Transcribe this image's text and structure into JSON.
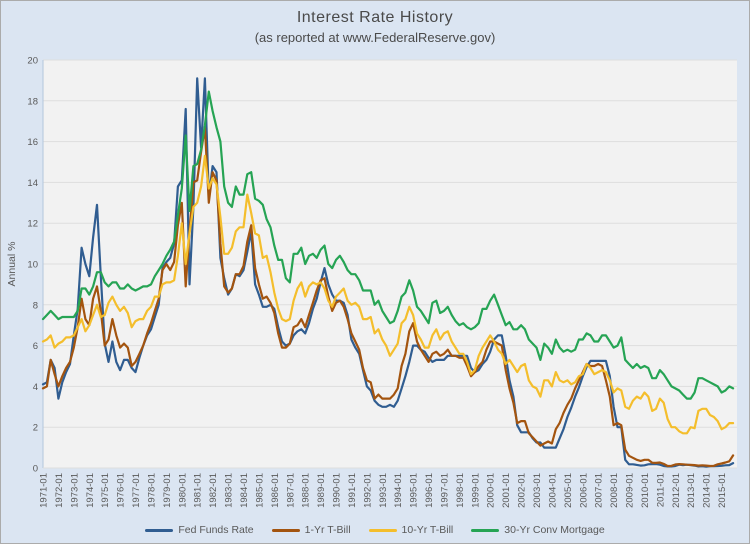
{
  "header": {
    "title": "Interest Rate History",
    "subtitle": "(as reported at www.FederalReserve.gov)"
  },
  "chart_data": {
    "type": "line",
    "title": "Interest Rate History",
    "subtitle": "(as reported at www.FederalReserve.gov)",
    "ylabel": "Annual %",
    "ylim": [
      0,
      20
    ],
    "yticks": [
      0,
      2,
      4,
      6,
      8,
      10,
      12,
      14,
      16,
      18,
      20
    ],
    "x_domain": [
      1971,
      2016
    ],
    "x_start": 1971.0,
    "x_step": 0.25,
    "grid": true,
    "legend_position": "bottom",
    "page_bg": "#dbe5f2",
    "plot_bg": "#f2f2f2",
    "gridline_color": "#dedede",
    "axis_line_color": "#b3c6dc",
    "tick_color": "#595959",
    "x_tick_labels": [
      "1971-01",
      "1972-01",
      "1973-01",
      "1974-01",
      "1975-01",
      "1976-01",
      "1977-01",
      "1978-01",
      "1979-01",
      "1980-01",
      "1981-01",
      "1982-01",
      "1983-01",
      "1984-01",
      "1985-01",
      "1986-01",
      "1987-01",
      "1988-01",
      "1989-01",
      "1990-01",
      "1991-01",
      "1992-01",
      "1993-01",
      "1994-01",
      "1995-01",
      "1996-01",
      "1997-01",
      "1998-01",
      "1999-01",
      "2000-01",
      "2001-01",
      "2002-01",
      "2003-01",
      "2004-01",
      "2005-01",
      "2006-01",
      "2007-01",
      "2008-01",
      "2009-01",
      "2010-01",
      "2011-01",
      "2012-01",
      "2013-01",
      "2014-01",
      "2015-01"
    ],
    "series": [
      {
        "name": "Fed Funds Rate",
        "color": "#305D91",
        "values": [
          4.1,
          4.2,
          5.3,
          4.9,
          3.4,
          4.2,
          4.7,
          5.1,
          6.5,
          7.8,
          10.8,
          10.0,
          9.4,
          11.3,
          12.9,
          9.4,
          6.1,
          5.2,
          6.2,
          5.2,
          4.8,
          5.3,
          5.3,
          4.9,
          4.7,
          5.4,
          6.0,
          6.5,
          6.8,
          7.4,
          8.0,
          9.8,
          10.1,
          10.3,
          11.0,
          13.8,
          14.1,
          17.6,
          9.0,
          12.8,
          19.1,
          15.7,
          19.1,
          13.3,
          14.8,
          14.5,
          10.3,
          9.3,
          8.5,
          8.8,
          9.5,
          9.4,
          9.7,
          10.6,
          11.6,
          9.0,
          8.5,
          7.9,
          7.9,
          8.0,
          7.8,
          6.9,
          6.2,
          6.0,
          6.1,
          6.5,
          6.7,
          6.8,
          6.6,
          7.1,
          7.8,
          8.3,
          9.1,
          9.8,
          9.0,
          8.5,
          8.2,
          8.2,
          8.1,
          7.5,
          6.3,
          5.9,
          5.6,
          4.8,
          4.0,
          3.8,
          3.3,
          3.1,
          3.0,
          3.0,
          3.1,
          3.0,
          3.3,
          3.9,
          4.5,
          5.2,
          6.0,
          6.0,
          5.8,
          5.7,
          5.4,
          5.2,
          5.3,
          5.3,
          5.3,
          5.5,
          5.5,
          5.5,
          5.5,
          5.5,
          5.5,
          4.9,
          4.7,
          4.8,
          5.1,
          5.3,
          5.7,
          6.3,
          6.5,
          6.5,
          5.5,
          4.3,
          3.5,
          2.1,
          1.75,
          1.75,
          1.75,
          1.45,
          1.25,
          1.25,
          1.0,
          1.0,
          1.0,
          1.0,
          1.45,
          1.9,
          2.5,
          2.95,
          3.5,
          3.95,
          4.5,
          4.95,
          5.25,
          5.25,
          5.25,
          5.25,
          5.25,
          4.5,
          3.0,
          2.0,
          2.0,
          0.4,
          0.18,
          0.18,
          0.15,
          0.12,
          0.13,
          0.18,
          0.19,
          0.19,
          0.16,
          0.1,
          0.08,
          0.08,
          0.1,
          0.16,
          0.14,
          0.16,
          0.14,
          0.12,
          0.08,
          0.09,
          0.07,
          0.09,
          0.09,
          0.1,
          0.11,
          0.13,
          0.14,
          0.24
        ]
      },
      {
        "name": "1-Yr T-Bill",
        "color": "#A3540F",
        "values": [
          3.9,
          4.0,
          5.3,
          4.6,
          4.0,
          4.5,
          4.9,
          5.2,
          5.9,
          6.9,
          8.3,
          7.3,
          7.0,
          8.3,
          8.9,
          7.7,
          6.0,
          6.3,
          7.3,
          6.5,
          5.9,
          6.1,
          5.9,
          5.0,
          5.2,
          5.6,
          6.0,
          6.6,
          7.1,
          7.7,
          8.3,
          9.7,
          10.0,
          9.7,
          10.1,
          11.9,
          13.0,
          8.9,
          11.6,
          14.0,
          14.1,
          15.5,
          16.7,
          13.0,
          14.5,
          14.1,
          11.0,
          8.9,
          8.6,
          8.8,
          9.5,
          9.5,
          9.9,
          11.1,
          11.9,
          9.8,
          9.0,
          8.3,
          8.4,
          8.1,
          7.6,
          6.6,
          5.9,
          5.9,
          6.1,
          6.9,
          7.0,
          7.3,
          6.9,
          7.5,
          8.1,
          8.7,
          9.2,
          9.3,
          8.4,
          7.7,
          8.1,
          8.2,
          7.9,
          7.3,
          6.6,
          6.2,
          5.8,
          4.9,
          4.3,
          4.2,
          3.4,
          3.6,
          3.4,
          3.4,
          3.4,
          3.6,
          3.9,
          5.0,
          5.6,
          6.7,
          7.1,
          6.2,
          5.8,
          5.5,
          5.2,
          5.6,
          5.7,
          5.5,
          5.6,
          5.8,
          5.5,
          5.5,
          5.4,
          5.4,
          5.0,
          4.5,
          4.7,
          5.0,
          5.2,
          5.8,
          6.2,
          6.2,
          6.1,
          6.0,
          4.8,
          3.9,
          3.2,
          2.2,
          2.3,
          2.3,
          1.7,
          1.5,
          1.3,
          1.1,
          1.2,
          1.3,
          1.2,
          1.9,
          2.2,
          2.7,
          3.1,
          3.4,
          3.9,
          4.3,
          4.7,
          5.1,
          5.0,
          5.0,
          5.1,
          5.0,
          4.3,
          3.5,
          2.1,
          2.2,
          2.1,
          0.9,
          0.6,
          0.5,
          0.4,
          0.35,
          0.4,
          0.4,
          0.26,
          0.25,
          0.27,
          0.2,
          0.1,
          0.11,
          0.17,
          0.19,
          0.18,
          0.16,
          0.15,
          0.14,
          0.12,
          0.13,
          0.12,
          0.1,
          0.11,
          0.18,
          0.22,
          0.27,
          0.33,
          0.62
        ]
      },
      {
        "name": "10-Yr T-Bill",
        "color": "#F4BE2C",
        "values": [
          6.2,
          6.3,
          6.5,
          5.9,
          6.1,
          6.2,
          6.4,
          6.4,
          6.5,
          6.9,
          7.3,
          6.7,
          7.0,
          7.5,
          8.0,
          7.4,
          7.5,
          8.1,
          8.4,
          8.0,
          7.7,
          7.9,
          7.6,
          6.9,
          7.2,
          7.3,
          7.3,
          7.7,
          7.9,
          8.4,
          8.4,
          9.0,
          9.1,
          9.1,
          9.2,
          10.4,
          12.0,
          10.0,
          11.5,
          12.8,
          13.0,
          13.8,
          15.3,
          13.7,
          14.2,
          13.9,
          12.3,
          10.5,
          10.5,
          10.8,
          11.6,
          11.8,
          11.8,
          13.4,
          12.5,
          11.5,
          11.4,
          10.3,
          10.4,
          9.6,
          8.6,
          7.8,
          7.3,
          7.2,
          7.3,
          8.2,
          8.8,
          9.1,
          8.4,
          8.9,
          9.1,
          9.0,
          9.1,
          8.8,
          8.2,
          7.9,
          8.4,
          8.6,
          8.8,
          8.2,
          8.0,
          8.1,
          7.9,
          7.3,
          7.3,
          7.4,
          6.6,
          6.8,
          6.3,
          6.0,
          5.5,
          5.8,
          6.1,
          7.1,
          7.3,
          7.9,
          7.5,
          6.6,
          6.3,
          5.9,
          5.9,
          6.5,
          6.8,
          6.3,
          6.6,
          6.7,
          6.2,
          5.9,
          5.6,
          5.6,
          5.2,
          4.6,
          4.8,
          5.5,
          5.9,
          6.2,
          6.5,
          6.2,
          5.8,
          5.6,
          5.1,
          5.3,
          5.0,
          4.7,
          5.0,
          5.1,
          4.3,
          4.0,
          3.9,
          3.5,
          4.3,
          4.3,
          4.0,
          4.7,
          4.3,
          4.2,
          4.3,
          4.1,
          4.2,
          4.5,
          4.6,
          5.1,
          4.9,
          4.6,
          4.7,
          4.8,
          4.7,
          4.3,
          3.7,
          3.9,
          3.8,
          3.0,
          2.9,
          3.3,
          3.5,
          3.4,
          3.7,
          3.5,
          2.8,
          2.9,
          3.4,
          3.2,
          2.4,
          2.0,
          2.0,
          1.8,
          1.7,
          1.7,
          2.0,
          1.95,
          2.8,
          2.9,
          2.9,
          2.6,
          2.5,
          2.3,
          1.9,
          2.0,
          2.2,
          2.2
        ]
      },
      {
        "name": "30-Yr Conv Mortgage",
        "color": "#26A454",
        "values": [
          7.3,
          7.5,
          7.7,
          7.5,
          7.3,
          7.4,
          7.4,
          7.4,
          7.4,
          7.7,
          8.8,
          8.8,
          8.5,
          8.9,
          9.6,
          9.6,
          9.1,
          8.9,
          9.1,
          9.1,
          8.8,
          8.8,
          9.0,
          8.8,
          8.7,
          8.8,
          8.9,
          8.9,
          9.0,
          9.4,
          9.7,
          10.0,
          10.4,
          10.7,
          11.1,
          12.4,
          13.7,
          16.3,
          12.6,
          14.8,
          14.9,
          15.6,
          16.8,
          18.45,
          17.5,
          16.7,
          16.0,
          13.8,
          13.0,
          12.8,
          13.8,
          13.4,
          13.4,
          14.4,
          14.5,
          13.2,
          13.1,
          12.9,
          12.2,
          11.8,
          10.9,
          10.2,
          10.2,
          9.3,
          9.1,
          10.5,
          10.5,
          10.8,
          10.0,
          10.4,
          10.5,
          10.3,
          10.7,
          10.9,
          10.0,
          9.8,
          10.2,
          10.4,
          10.1,
          9.7,
          9.5,
          9.5,
          9.2,
          8.7,
          8.7,
          8.7,
          8.0,
          8.2,
          7.7,
          7.4,
          7.1,
          7.2,
          7.7,
          8.4,
          8.6,
          9.2,
          8.7,
          7.9,
          7.7,
          7.4,
          7.1,
          8.1,
          8.2,
          7.6,
          7.7,
          7.9,
          7.5,
          7.2,
          7.0,
          7.1,
          6.9,
          6.8,
          6.9,
          7.1,
          7.8,
          7.8,
          8.2,
          8.5,
          8.0,
          7.5,
          7.0,
          7.15,
          6.8,
          6.8,
          7.0,
          6.8,
          6.3,
          6.1,
          5.9,
          5.3,
          6.1,
          5.9,
          5.6,
          6.3,
          5.9,
          5.7,
          5.8,
          5.7,
          5.8,
          6.3,
          6.3,
          6.6,
          6.5,
          6.2,
          6.2,
          6.5,
          6.5,
          6.2,
          5.9,
          6.0,
          6.4,
          5.3,
          5.1,
          4.9,
          5.1,
          4.9,
          5.0,
          4.9,
          4.4,
          4.4,
          4.8,
          4.6,
          4.3,
          4.0,
          3.9,
          3.8,
          3.6,
          3.4,
          3.4,
          3.7,
          4.4,
          4.4,
          4.3,
          4.2,
          4.1,
          4.0,
          3.7,
          3.8,
          4.0,
          3.9
        ]
      }
    ]
  }
}
